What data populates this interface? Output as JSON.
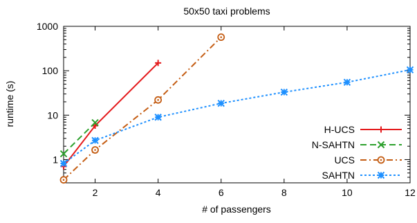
{
  "chart_data": {
    "type": "line",
    "title": "50x50 taxi problems",
    "xlabel": "# of passengers",
    "ylabel": "runtime (s)",
    "xlim": [
      1,
      12
    ],
    "ylim": [
      0.3,
      1000
    ],
    "yscale": "log",
    "xticks": [
      2,
      4,
      6,
      8,
      10,
      12
    ],
    "yticks": [
      1,
      10,
      100,
      1000
    ],
    "xtick_labels": [
      "2",
      "4",
      "6",
      "8",
      "10",
      "12"
    ],
    "ytick_labels": [
      "1",
      "10",
      "100",
      "1000"
    ],
    "grid": false,
    "legend_position": "lower-right",
    "series": [
      {
        "name": "H-UCS",
        "color": "#e41a1c",
        "dash": "solid",
        "marker": "plus",
        "x": [
          1,
          2,
          4
        ],
        "y": [
          0.7,
          5.8,
          150
        ]
      },
      {
        "name": "N-SAHTN",
        "color": "#2ca02c",
        "dash": "dashed",
        "marker": "cross",
        "x": [
          1,
          2
        ],
        "y": [
          1.35,
          6.8
        ]
      },
      {
        "name": "UCS",
        "color": "#c45c12",
        "dash": "dashdot",
        "marker": "circle-dot",
        "x": [
          1,
          2,
          4,
          6
        ],
        "y": [
          0.35,
          1.65,
          22,
          570
        ]
      },
      {
        "name": "SAHTN",
        "color": "#1e90ff",
        "dash": "dotted",
        "marker": "star",
        "x": [
          1,
          2,
          4,
          6,
          8,
          10,
          12
        ],
        "y": [
          0.82,
          2.7,
          9,
          18.5,
          33,
          55,
          105
        ]
      }
    ]
  }
}
